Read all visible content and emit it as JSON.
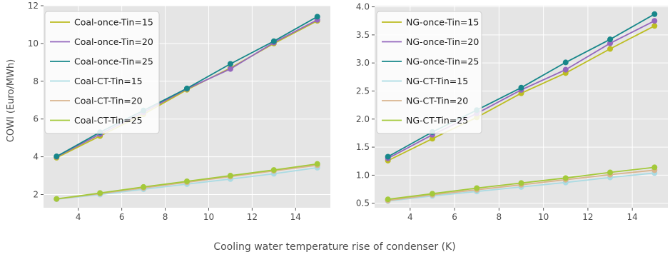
{
  "figure": {
    "xlabel": "Cooling water temperature rise of condenser (K)",
    "ylabel": "COWI (Euro/MWh)"
  },
  "chart_data": [
    {
      "type": "line",
      "title": "",
      "xlabel": "",
      "ylabel": "COWI (Euro/MWh)",
      "x": [
        3,
        5,
        7,
        9,
        11,
        13,
        15
      ],
      "xlim": [
        2.4,
        15.6
      ],
      "ylim": [
        1.3,
        12.0
      ],
      "xticks": [
        4,
        6,
        8,
        10,
        12,
        14
      ],
      "yticks": [
        2,
        4,
        6,
        8,
        10,
        12
      ],
      "ytick_labels": [
        "2",
        "4",
        "6",
        "8",
        "10",
        "12"
      ],
      "grid": true,
      "legend_position": "top-left",
      "series": [
        {
          "name": "Coal-once-Tin=15",
          "color": "#bcbd22",
          "values": [
            3.95,
            5.1,
            6.25,
            7.55,
            8.7,
            10.0,
            11.2
          ]
        },
        {
          "name": "Coal-once-Tin=20",
          "color": "#9467bd",
          "values": [
            4.0,
            5.2,
            6.35,
            7.6,
            8.65,
            10.05,
            11.25
          ]
        },
        {
          "name": "Coal-once-Tin=25",
          "color": "#17878a",
          "values": [
            4.02,
            5.3,
            6.45,
            7.62,
            8.92,
            10.12,
            11.42
          ]
        },
        {
          "name": "Coal-CT-Tin=15",
          "color": "#aadbe3",
          "values": [
            1.75,
            2.0,
            2.28,
            2.55,
            2.82,
            3.1,
            3.42
          ]
        },
        {
          "name": "Coal-CT-Tin=20",
          "color": "#d9b48e",
          "values": [
            1.76,
            2.05,
            2.35,
            2.65,
            2.95,
            3.25,
            3.55
          ]
        },
        {
          "name": "Coal-CT-Tin=25",
          "color": "#a3c93a",
          "values": [
            1.77,
            2.08,
            2.4,
            2.7,
            3.0,
            3.3,
            3.62
          ]
        }
      ]
    },
    {
      "type": "line",
      "title": "",
      "xlabel": "",
      "ylabel": "",
      "x": [
        3,
        5,
        7,
        9,
        11,
        13,
        15
      ],
      "xlim": [
        2.4,
        15.6
      ],
      "ylim": [
        0.42,
        4.02
      ],
      "xticks": [
        4,
        6,
        8,
        10,
        12,
        14
      ],
      "yticks": [
        0.5,
        1.0,
        1.5,
        2.0,
        2.5,
        3.0,
        3.5,
        4.0
      ],
      "ytick_labels": [
        "0.5",
        "1.0",
        "1.5",
        "2.0",
        "2.5",
        "3.0",
        "3.5",
        "4.0"
      ],
      "grid": true,
      "legend_position": "top-left",
      "series": [
        {
          "name": "NG-once-Tin=15",
          "color": "#bcbd22",
          "values": [
            1.26,
            1.65,
            2.03,
            2.46,
            2.82,
            3.25,
            3.66
          ]
        },
        {
          "name": "NG-once-Tin=20",
          "color": "#9467bd",
          "values": [
            1.3,
            1.72,
            2.1,
            2.52,
            2.88,
            3.35,
            3.75
          ]
        },
        {
          "name": "NG-once-Tin=25",
          "color": "#17878a",
          "values": [
            1.33,
            1.77,
            2.16,
            2.56,
            3.01,
            3.42,
            3.87
          ]
        },
        {
          "name": "NG-CT-Tin=15",
          "color": "#aadbe3",
          "values": [
            0.54,
            0.63,
            0.71,
            0.79,
            0.87,
            0.96,
            1.04
          ]
        },
        {
          "name": "NG-CT-Tin=20",
          "color": "#d9b48e",
          "values": [
            0.55,
            0.65,
            0.74,
            0.83,
            0.92,
            1.01,
            1.09
          ]
        },
        {
          "name": "NG-CT-Tin=25",
          "color": "#a3c93a",
          "values": [
            0.57,
            0.67,
            0.77,
            0.86,
            0.95,
            1.05,
            1.14
          ]
        }
      ]
    }
  ]
}
